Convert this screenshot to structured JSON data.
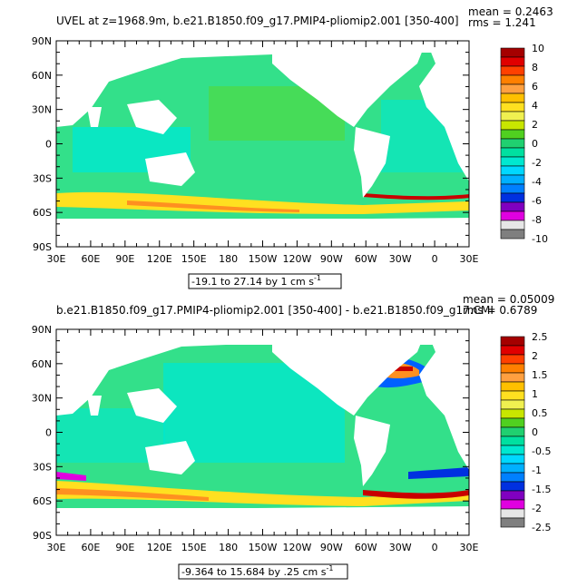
{
  "panels": [
    {
      "id": "top",
      "title": "UVEL at z=1968.9m, b.e21.B1850.f09_g17.PMIP4-pliomip2.001 [350-400]",
      "mean_label": "mean = 0.2463",
      "rms_label": "rms = 1.241",
      "range_label": "-19.1 to 27.14 by 1 cm s",
      "range_unit_exp": "-1",
      "lat_ticks": [
        "90N",
        "60N",
        "30N",
        "0",
        "30S",
        "60S",
        "90S"
      ],
      "lon_ticks": [
        "30E",
        "60E",
        "90E",
        "120E",
        "150E",
        "180",
        "150W",
        "120W",
        "90W",
        "60W",
        "30W",
        "0",
        "30E"
      ],
      "colorbar_labels": [
        "10",
        "8",
        "6",
        "4",
        "2",
        "0",
        "-2",
        "-4",
        "-6",
        "-8",
        "-10"
      ],
      "colorbar_colors": [
        "#a50000",
        "#e00000",
        "#ff4000",
        "#ff8000",
        "#ffa040",
        "#ffc000",
        "#ffe020",
        "#f0f050",
        "#c8e600",
        "#50d020",
        "#20d070",
        "#00e0a0",
        "#00e8d0",
        "#00d8ff",
        "#00b0ff",
        "#0080ff",
        "#0030e0",
        "#8000c0",
        "#e000e0",
        "#e6e6e6",
        "#7f7f7f"
      ]
    },
    {
      "id": "bottom",
      "title": "b.e21.B1850.f09_g17.PMIP4-pliomip2.001 [350-400] - b.e21.B1850.f09_g17.CMI",
      "mean_label": "mean = 0.05009",
      "rms_label": "rms = 0.6789",
      "range_label": "-9.364 to 15.684 by .25 cm s",
      "range_unit_exp": "-1",
      "lat_ticks": [
        "90N",
        "60N",
        "30N",
        "0",
        "30S",
        "60S",
        "90S"
      ],
      "lon_ticks": [
        "30E",
        "60E",
        "90E",
        "120E",
        "150E",
        "180",
        "150W",
        "120W",
        "90W",
        "60W",
        "30W",
        "0",
        "30E"
      ],
      "colorbar_labels": [
        "2.5",
        "2",
        "1.5",
        "1",
        "0.5",
        "0",
        "-0.5",
        "-1",
        "-1.5",
        "-2",
        "-2.5"
      ],
      "colorbar_colors": [
        "#a50000",
        "#e00000",
        "#ff4000",
        "#ff8000",
        "#ffa040",
        "#ffc000",
        "#ffe020",
        "#f0f050",
        "#c8e600",
        "#50d020",
        "#20d070",
        "#00e0a0",
        "#00e8d0",
        "#00d8ff",
        "#00b0ff",
        "#0080ff",
        "#0030e0",
        "#8000c0",
        "#e000e0",
        "#e6e6e6",
        "#7f7f7f"
      ]
    }
  ],
  "colors": {
    "ocean_base": "#33e08a",
    "ocean_cyan": "#00e8d0",
    "ocean_green": "#55d830",
    "acc_yellow": "#ffe020",
    "acc_orange": "#ff9020",
    "acc_red": "#c80000",
    "acc_blue": "#0060ff",
    "land": "#ffffff"
  }
}
